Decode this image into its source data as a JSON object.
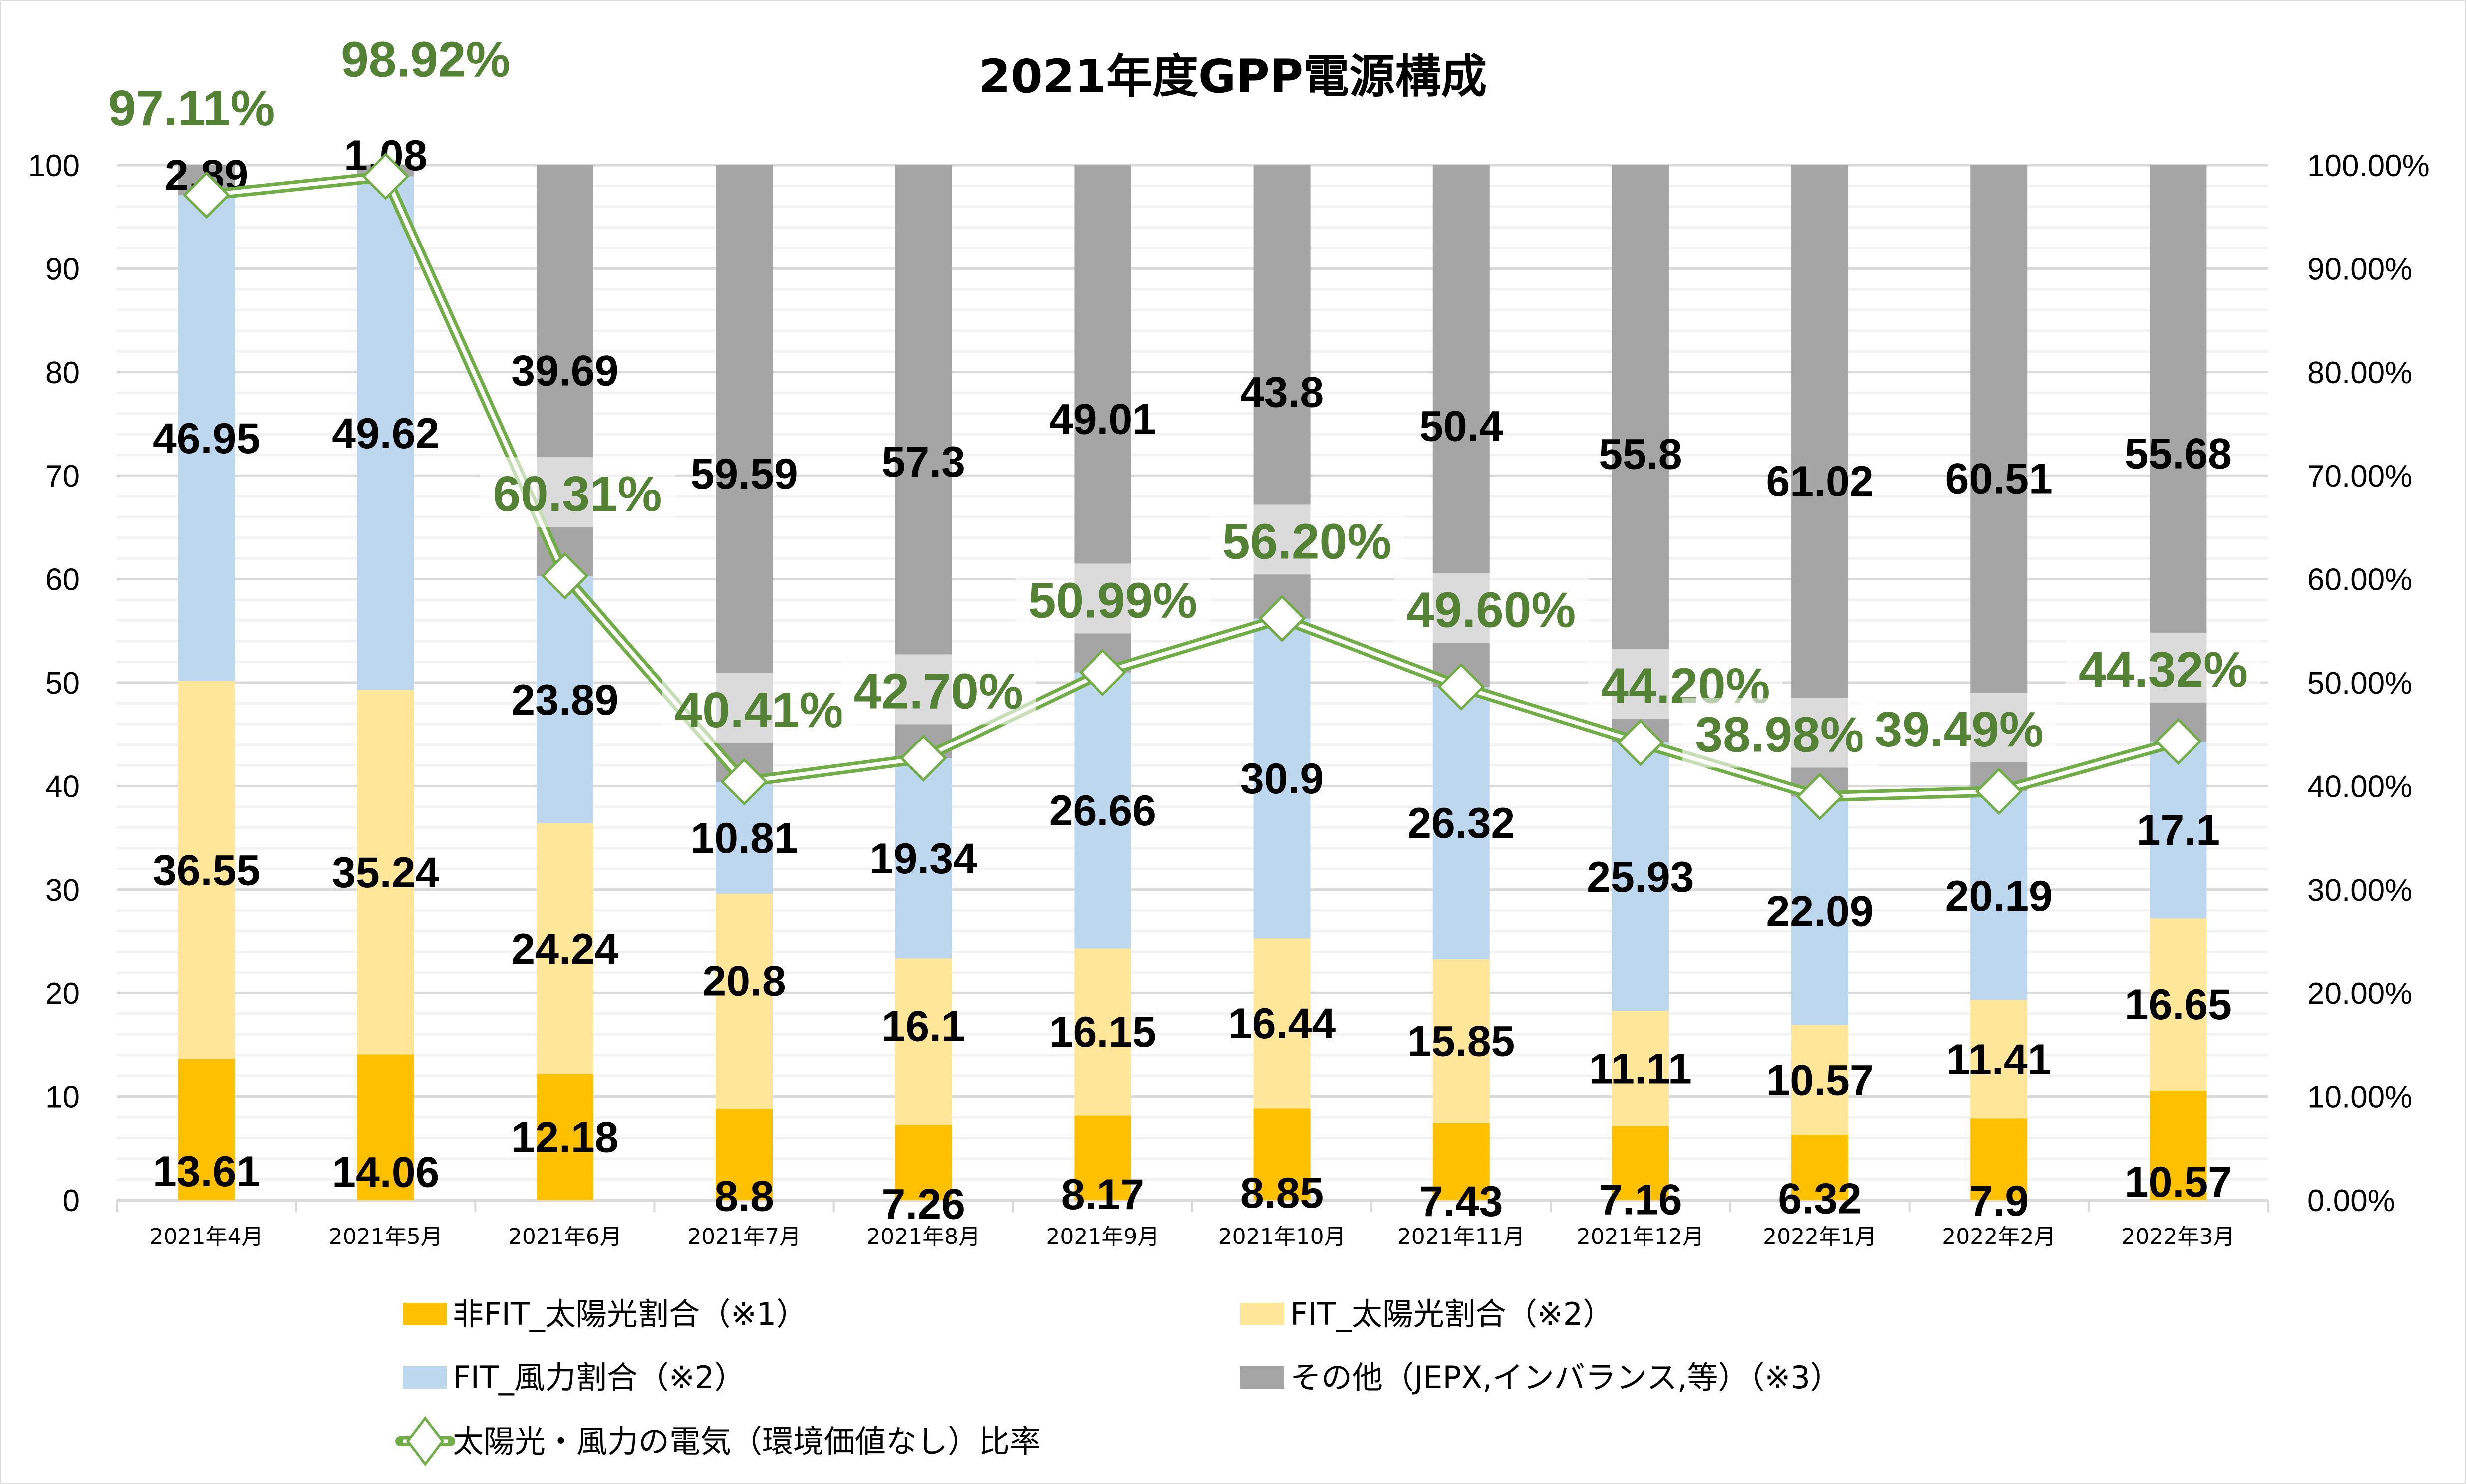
{
  "chart_data": {
    "type": "bar",
    "stacked": true,
    "title": "2021年度GPP電源構成",
    "xlabel": "",
    "ylabel": "",
    "ylim": [
      0,
      100
    ],
    "y_ticks": [
      "0",
      "10",
      "20",
      "30",
      "40",
      "50",
      "60",
      "70",
      "80",
      "90",
      "100"
    ],
    "y2lim": [
      0,
      1
    ],
    "y2_ticks": [
      "0.00%",
      "10.00%",
      "20.00%",
      "30.00%",
      "40.00%",
      "50.00%",
      "60.00%",
      "70.00%",
      "80.00%",
      "90.00%",
      "100.00%"
    ],
    "grid": true,
    "legend_position": "bottom",
    "categories": [
      "2021年4月",
      "2021年5月",
      "2021年6月",
      "2021年7月",
      "2021年8月",
      "2021年9月",
      "2021年10月",
      "2021年11月",
      "2021年12月",
      "2022年1月",
      "2022年2月",
      "2022年3月"
    ],
    "series": [
      {
        "name": "非FIT_太陽光割合（※1）",
        "type": "bar",
        "color": "#ffc000",
        "values": [
          13.61,
          14.06,
          12.18,
          8.8,
          7.26,
          8.17,
          8.85,
          7.43,
          7.16,
          6.32,
          7.9,
          10.57
        ],
        "labels": [
          "13.61",
          "14.06",
          "12.18",
          "8.8",
          "7.26",
          "8.17",
          "8.85",
          "7.43",
          "7.16",
          "6.32",
          "7.9",
          "10.57"
        ]
      },
      {
        "name": "FIT_太陽光割合（※2）",
        "type": "bar",
        "color": "#ffe699",
        "values": [
          36.55,
          35.24,
          24.24,
          20.8,
          16.1,
          16.15,
          16.44,
          15.85,
          11.11,
          10.57,
          11.41,
          16.65
        ],
        "labels": [
          "36.55",
          "35.24",
          "24.24",
          "20.8",
          "16.1",
          "16.15",
          "16.44",
          "15.85",
          "11.11",
          "10.57",
          "11.41",
          "16.65"
        ]
      },
      {
        "name": "FIT_風力割合（※2）",
        "type": "bar",
        "color": "#bdd7ee",
        "values": [
          46.95,
          49.62,
          23.89,
          10.81,
          19.34,
          26.66,
          30.9,
          26.32,
          25.93,
          22.09,
          20.19,
          17.1
        ],
        "labels": [
          "46.95",
          "49.62",
          "23.89",
          "10.81",
          "19.34",
          "26.66",
          "30.9",
          "26.32",
          "25.93",
          "22.09",
          "20.19",
          "17.1"
        ]
      },
      {
        "name": "その他（JEPX,インバランス,等）（※3）",
        "type": "bar",
        "color": "#a5a5a5",
        "values": [
          2.89,
          1.08,
          39.69,
          59.59,
          57.3,
          49.01,
          43.8,
          50.4,
          55.8,
          61.02,
          60.51,
          55.68
        ],
        "labels": [
          "2.89",
          "1.08",
          "39.69",
          "59.59",
          "57.3",
          "49.01",
          "43.8",
          "50.4",
          "55.8",
          "61.02",
          "60.51",
          "55.68"
        ]
      },
      {
        "name": "太陽光・風力の電気（環境価値なし）比率",
        "type": "line",
        "axis": "secondary",
        "color": "#70ad47",
        "label_color": "#548235",
        "marker": "diamond",
        "values": [
          0.9711,
          0.9892,
          0.6031,
          0.4041,
          0.427,
          0.5099,
          0.562,
          0.496,
          0.442,
          0.3898,
          0.3949,
          0.4432
        ],
        "labels": [
          "97.11%",
          "98.92%",
          "60.31%",
          "40.41%",
          "42.70%",
          "50.99%",
          "56.20%",
          "49.60%",
          "44.20%",
          "38.98%",
          "39.49%",
          "44.32%"
        ]
      }
    ]
  },
  "legend": {
    "items": [
      {
        "label": "非FIT_太陽光割合（※1）",
        "kind": "square",
        "color": "#ffc000"
      },
      {
        "label": "FIT_太陽光割合（※2）",
        "kind": "square",
        "color": "#ffe699"
      },
      {
        "label": "FIT_風力割合（※2）",
        "kind": "square",
        "color": "#bdd7ee"
      },
      {
        "label": "その他（JEPX,インバランス,等）（※3）",
        "kind": "square",
        "color": "#a5a5a5"
      },
      {
        "label": "太陽光・風力の電気（環境価値なし）比率",
        "kind": "line-diamond",
        "color": "#70ad47"
      }
    ]
  }
}
